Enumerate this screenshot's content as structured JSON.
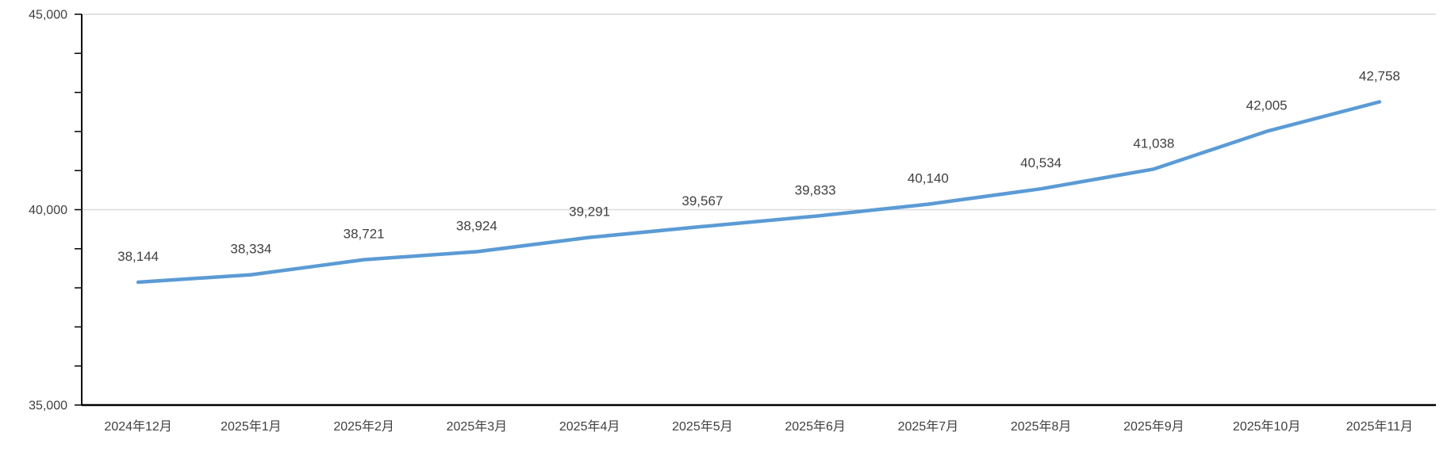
{
  "chart_data": {
    "type": "line",
    "title": "",
    "categories": [
      "2024年12月",
      "2025年1月",
      "2025年2月",
      "2025年3月",
      "2025年4月",
      "2025年5月",
      "2025年6月",
      "2025年7月",
      "2025年8月",
      "2025年9月",
      "2025年10月",
      "2025年11月"
    ],
    "values": [
      38144,
      38334,
      38721,
      38924,
      39291,
      39567,
      39833,
      40140,
      40534,
      41038,
      42005,
      42758
    ],
    "data_labels": [
      "38,144",
      "38,334",
      "38,721",
      "38,924",
      "39,291",
      "39,567",
      "39,833",
      "40,140",
      "40,534",
      "41,038",
      "42,005",
      "42,758"
    ],
    "xlabel": "",
    "ylabel": "",
    "ylim": [
      35000,
      45000
    ],
    "y_major_ticks": [
      {
        "value": 35000,
        "label": "35,000"
      },
      {
        "value": 40000,
        "label": "40,000"
      },
      {
        "value": 45000,
        "label": "45,000"
      }
    ],
    "y_minor_tick_interval": 1000,
    "grid": "horizontal-major-only",
    "legend_position": "none",
    "colors": {
      "line": "#5B9BD5",
      "gridline": "#D9D9D9",
      "axis": "#000000",
      "axis_label": "#404040",
      "data_label": "#404040",
      "background": "#FFFFFF"
    }
  }
}
